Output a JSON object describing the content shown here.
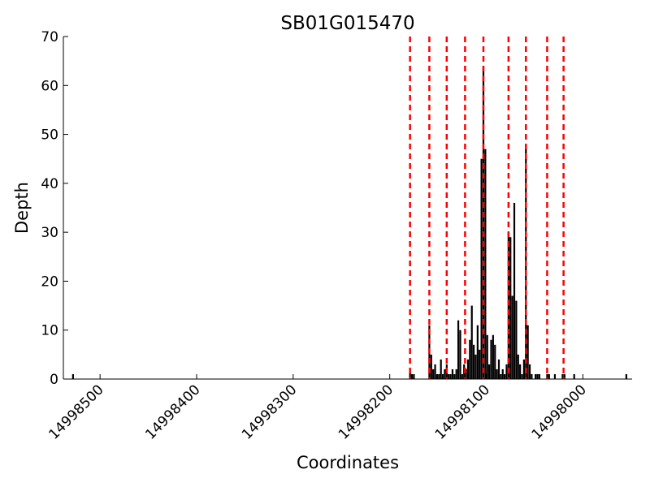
{
  "chart_data": {
    "type": "bar",
    "title": "SB01G015470",
    "xlabel": "Coordinates",
    "ylabel": "Depth",
    "x_inverted": true,
    "xlim": [
      14998538,
      14997949
    ],
    "ylim": [
      0,
      70
    ],
    "x_ticks": [
      14998500,
      14998400,
      14998300,
      14998200,
      14998100,
      14998000
    ],
    "x_tick_labels": [
      "14998500",
      "14998400",
      "14998300",
      "14998200",
      "14998100",
      "14998000"
    ],
    "y_ticks": [
      0,
      10,
      20,
      30,
      40,
      50,
      60,
      70
    ],
    "y_tick_labels": [
      "0",
      "10",
      "20",
      "30",
      "40",
      "50",
      "60",
      "70"
    ],
    "grid": false,
    "boundary_lines": {
      "color": "#ff0000",
      "style": "dashed",
      "x": [
        14998179,
        14998159,
        14998141,
        14998122,
        14998103,
        14998077,
        14998059,
        14998037,
        14998020
      ]
    },
    "series": [
      {
        "color": "#000000",
        "x": [
          14998528,
          14998179,
          14998177,
          14998175,
          14998159,
          14998157,
          14998155,
          14998153,
          14998151,
          14998149,
          14998147,
          14998145,
          14998143,
          14998141,
          14998139,
          14998137,
          14998135,
          14998133,
          14998131,
          14998129,
          14998127,
          14998125,
          14998123,
          14998121,
          14998119,
          14998117,
          14998115,
          14998113,
          14998111,
          14998109,
          14998107,
          14998105,
          14998103,
          14998101,
          14998099,
          14998097,
          14998095,
          14998093,
          14998091,
          14998089,
          14998087,
          14998085,
          14998083,
          14998081,
          14998079,
          14998077,
          14998075,
          14998073,
          14998071,
          14998069,
          14998067,
          14998065,
          14998063,
          14998061,
          14998059,
          14998057,
          14998055,
          14998053,
          14998049,
          14998047,
          14998045,
          14998037,
          14998035,
          14998029,
          14998021,
          14998019,
          14998009,
          14997955
        ],
        "values": [
          1,
          2,
          1,
          1,
          11,
          5,
          2,
          3,
          1,
          1,
          4,
          1,
          2,
          3,
          1,
          1,
          2,
          1,
          2,
          12,
          10,
          1,
          3,
          2,
          4,
          8,
          15,
          7,
          5,
          11,
          6,
          45,
          64,
          47,
          9,
          3,
          8,
          9,
          7,
          2,
          4,
          1,
          2,
          1,
          3,
          30,
          29,
          17,
          36,
          16,
          5,
          3,
          1,
          4,
          47,
          11,
          3,
          1,
          1,
          1,
          1,
          1,
          1,
          1,
          1,
          1,
          1,
          1
        ]
      }
    ]
  }
}
